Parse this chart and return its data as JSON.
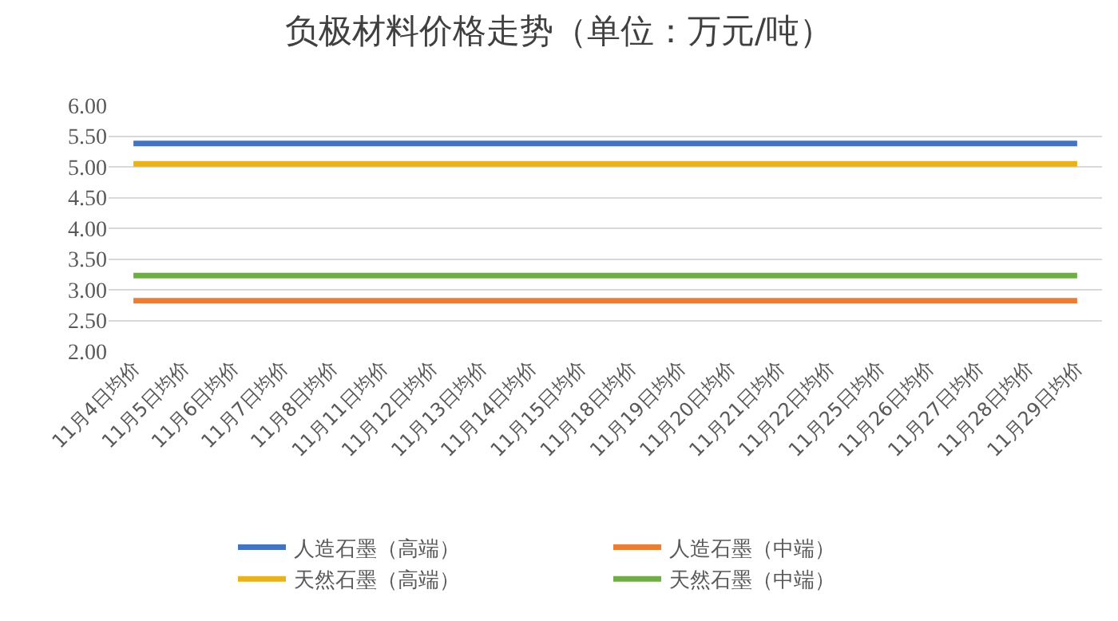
{
  "chart_data": {
    "type": "line",
    "title": "负极材料价格走势（单位：万元/吨）",
    "categories": [
      "11月4日均价",
      "11月5日均价",
      "11月6日均价",
      "11月7日均价",
      "11月8日均价",
      "11月11日均价",
      "11月12日均价",
      "11月13日均价",
      "11月14日均价",
      "11月15日均价",
      "11月18日均价",
      "11月19日均价",
      "11月20日均价",
      "11月21日均价",
      "11月22日均价",
      "11月25日均价",
      "11月26日均价",
      "11月27日均价",
      "11月28日均价",
      "11月29日均价"
    ],
    "series": [
      {
        "name": "人造石墨（高端）",
        "color": "#4472c4",
        "values": [
          5.38,
          5.38,
          5.38,
          5.38,
          5.38,
          5.38,
          5.38,
          5.38,
          5.38,
          5.38,
          5.38,
          5.38,
          5.38,
          5.38,
          5.38,
          5.38,
          5.38,
          5.38,
          5.38,
          5.38
        ]
      },
      {
        "name": "人造石墨（中端）",
        "color": "#ed7d31",
        "values": [
          2.82,
          2.82,
          2.82,
          2.82,
          2.82,
          2.82,
          2.82,
          2.82,
          2.82,
          2.82,
          2.82,
          2.82,
          2.82,
          2.82,
          2.82,
          2.82,
          2.82,
          2.82,
          2.82,
          2.82
        ]
      },
      {
        "name": "天然石墨（高端）",
        "color": "#e8b21c",
        "values": [
          5.05,
          5.05,
          5.05,
          5.05,
          5.05,
          5.05,
          5.05,
          5.05,
          5.05,
          5.05,
          5.05,
          5.05,
          5.05,
          5.05,
          5.05,
          5.05,
          5.05,
          5.05,
          5.05,
          5.05
        ]
      },
      {
        "name": "天然石墨（中端）",
        "color": "#70ad47",
        "values": [
          3.23,
          3.23,
          3.23,
          3.23,
          3.23,
          3.23,
          3.23,
          3.23,
          3.23,
          3.23,
          3.23,
          3.23,
          3.23,
          3.23,
          3.23,
          3.23,
          3.23,
          3.23,
          3.23,
          3.23
        ]
      }
    ],
    "ylim": [
      2,
      6
    ],
    "yticks": [
      {
        "value": 2,
        "label": "2.00"
      },
      {
        "value": 2.5,
        "label": "2.50"
      },
      {
        "value": 3,
        "label": "3.00"
      },
      {
        "value": 3.5,
        "label": "3.50"
      },
      {
        "value": 4,
        "label": "4.00"
      },
      {
        "value": 4.5,
        "label": "4.50"
      },
      {
        "value": 5,
        "label": "5.00"
      },
      {
        "value": 5.5,
        "label": "5.50"
      },
      {
        "value": 6,
        "label": "6.00"
      }
    ],
    "grid": "y",
    "legend": "bottom",
    "marker": "none",
    "line_style": "solid"
  }
}
